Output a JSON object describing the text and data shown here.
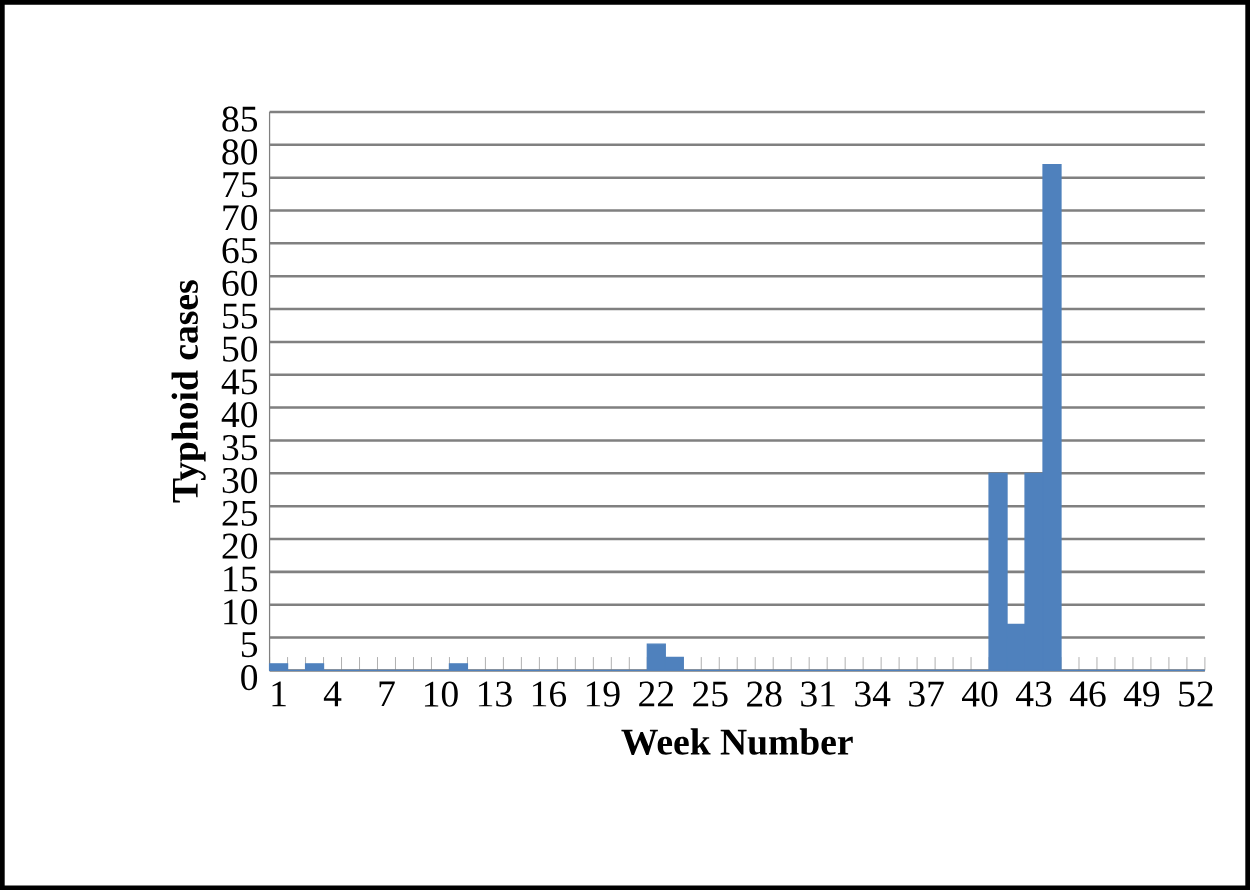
{
  "chart_data": {
    "type": "bar",
    "xlabel": "Week Number",
    "ylabel": "Typhoid cases",
    "categories": [
      "1",
      null,
      null,
      "4",
      null,
      null,
      "7",
      null,
      null,
      "10",
      null,
      null,
      "13",
      null,
      null,
      "16",
      null,
      null,
      "19",
      null,
      null,
      "22",
      null,
      null,
      "25",
      null,
      null,
      "28",
      null,
      null,
      "31",
      null,
      null,
      "34",
      null,
      null,
      "37",
      null,
      null,
      "40",
      null,
      null,
      "43",
      null,
      null,
      "46",
      null,
      null,
      "49",
      null,
      null,
      "52"
    ],
    "values": [
      1,
      0,
      1,
      0,
      0,
      0,
      0,
      0,
      0,
      0,
      1,
      0,
      0,
      0,
      0,
      0,
      0,
      0,
      0,
      0,
      0,
      4,
      2,
      0,
      0,
      0,
      0,
      0,
      0,
      0,
      0,
      0,
      0,
      0,
      0,
      0,
      0,
      0,
      0,
      0,
      30,
      7,
      30,
      77,
      0,
      0,
      0,
      0,
      0,
      0,
      0,
      0
    ],
    "color": "#4f81bd",
    "ylim": [
      0,
      85
    ],
    "yticks": [
      0,
      5,
      10,
      15,
      20,
      25,
      30,
      35,
      40,
      45,
      50,
      55,
      60,
      65,
      70,
      75,
      80,
      85
    ],
    "grid": "y"
  }
}
